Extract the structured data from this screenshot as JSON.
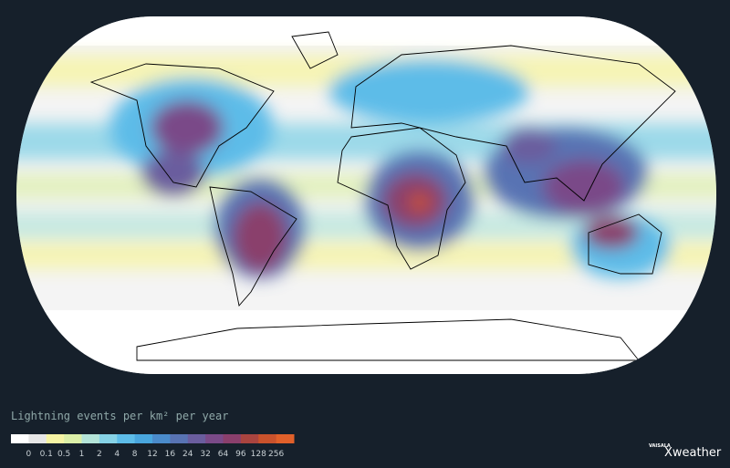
{
  "legend": {
    "title": "Lightning events per km² per year",
    "labels": [
      "0",
      "0.1",
      "0.5",
      "1",
      "2",
      "4",
      "8",
      "12",
      "16",
      "24",
      "32",
      "64",
      "96",
      "128",
      "256"
    ],
    "colors": [
      "#ffffff",
      "#e6e6e6",
      "#f6f4a4",
      "#dcefa8",
      "#b4e4d8",
      "#86d2e6",
      "#5dbce8",
      "#49a6de",
      "#4a8bcb",
      "#5873b3",
      "#6a5d9e",
      "#7a4a88",
      "#8a3f6c",
      "#a9443f",
      "#c9522c",
      "#e0602a"
    ]
  },
  "logo": {
    "brand": "VAISALA",
    "product": "Xweather"
  }
}
